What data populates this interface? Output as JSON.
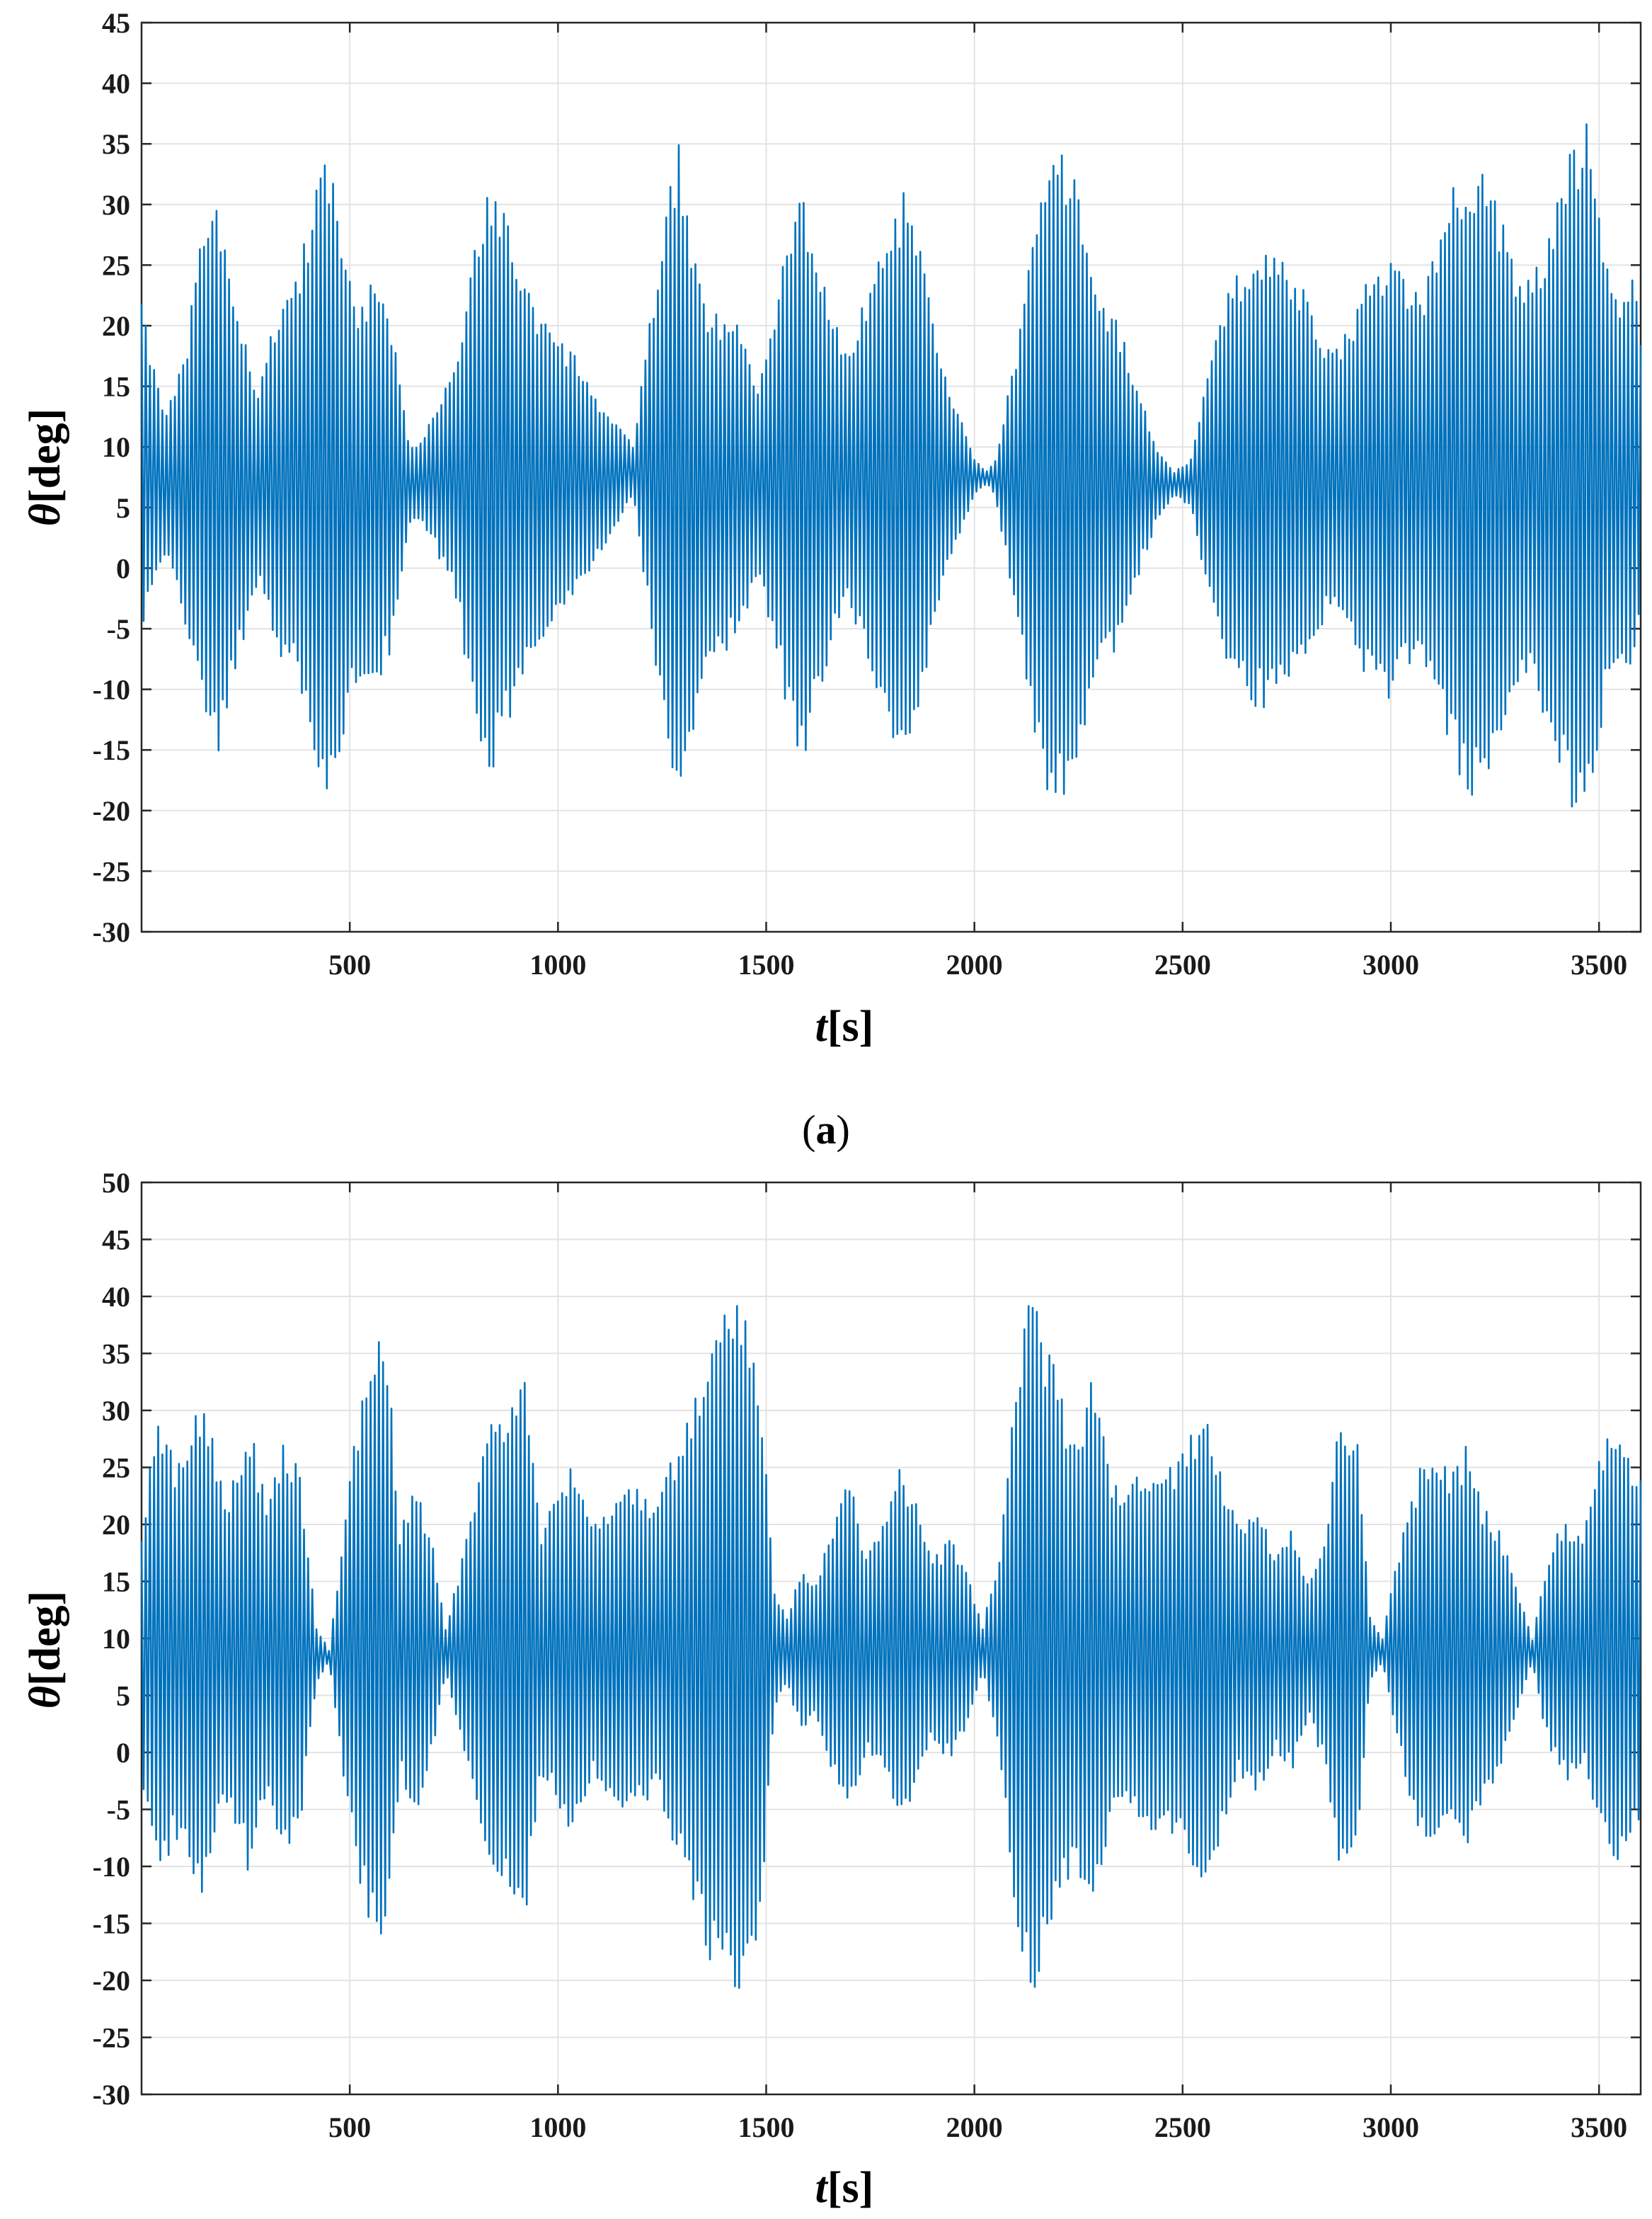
{
  "figure": {
    "caption_a": {
      "open": "(",
      "letter": "a",
      "close": ")"
    }
  },
  "chart_data": [
    {
      "type": "line",
      "panel": "a",
      "xlabel": {
        "var": "t",
        "unit": "[s]"
      },
      "ylabel": {
        "var": "θ",
        "unit": "[deg]"
      },
      "xlim": [
        0,
        3600
      ],
      "ylim": [
        -30,
        45
      ],
      "xticks": [
        500,
        1000,
        1500,
        2000,
        2500,
        3000,
        3500
      ],
      "yticks": [
        -30,
        -25,
        -20,
        -15,
        -10,
        -5,
        0,
        5,
        10,
        15,
        20,
        25,
        30,
        35,
        40,
        45
      ],
      "grid": true,
      "line_color": "#0072BD",
      "oscillation_period_s": 10,
      "series": [
        {
          "envelope": {
            "t": [
              0,
              20,
              60,
              100,
              150,
              180,
              230,
              280,
              330,
              380,
              430,
              440,
              480,
              520,
              560,
              600,
              640,
              660,
              700,
              760,
              800,
              840,
              870,
              920,
              960,
              1000,
              1060,
              1100,
              1150,
              1180,
              1200,
              1250,
              1270,
              1290,
              1320,
              1360,
              1400,
              1440,
              1480,
              1520,
              1560,
              1590,
              1610,
              1660,
              1700,
              1760,
              1800,
              1830,
              1880,
              1920,
              1960,
              2000,
              2030,
              2050,
              2090,
              2130,
              2170,
              2200,
              2250,
              2280,
              2300,
              2350,
              2400,
              2440,
              2480,
              2520,
              2560,
              2600,
              2620,
              2660,
              2700,
              2750,
              2790,
              2830,
              2860,
              2900,
              2940,
              2990,
              3030,
              3070,
              3110,
              3150,
              3190,
              3230,
              3260,
              3300,
              3340,
              3390,
              3430,
              3470,
              3490,
              3510,
              3550,
              3580,
              3600
            ],
            "upper": [
              24,
              18,
              13,
              17,
              29,
              31,
              21,
              15,
              22,
              25,
              34,
              36,
              28,
              22,
              24,
              20,
              11,
              10,
              13,
              18,
              28,
              32,
              30,
              24,
              21,
              19,
              17,
              13,
              12,
              10,
              15,
              28,
              34,
              35,
              28,
              22,
              21,
              20,
              15,
              21,
              29,
              31,
              28,
              21,
              18,
              25,
              29,
              31,
              25,
              17,
              13,
              9,
              8,
              9,
              16,
              25,
              33,
              35,
              32,
              26,
              23,
              20,
              14,
              10,
              8,
              9,
              16,
              22,
              24,
              26,
              27,
              25,
              23,
              20,
              18,
              20,
              24,
              26,
              24,
              23,
              26,
              32,
              34,
              33,
              30,
              25,
              24,
              29,
              35,
              37,
              31,
              27,
              22,
              25,
              20
            ],
            "lower": [
              -6,
              -2,
              1,
              -4,
              -13,
              -16,
              -8,
              -1,
              -7,
              -10,
              -19,
              -21,
              -15,
              -9,
              -10,
              -7,
              3,
              4,
              2,
              -3,
              -14,
              -17,
              -14,
              -9,
              -6,
              -4,
              -2,
              1,
              4,
              6,
              1,
              -13,
              -19,
              -20,
              -15,
              -9,
              -7,
              -5,
              -1,
              -6,
              -14,
              -16,
              -13,
              -6,
              -3,
              -10,
              -15,
              -16,
              -10,
              -2,
              2,
              6,
              7,
              6,
              -2,
              -11,
              -18,
              -20,
              -17,
              -12,
              -9,
              -6,
              0,
              4,
              6,
              5,
              -2,
              -7,
              -9,
              -11,
              -12,
              -10,
              -8,
              -5,
              -3,
              -5,
              -9,
              -11,
              -9,
              -8,
              -12,
              -16,
              -19,
              -18,
              -15,
              -10,
              -9,
              -15,
              -20,
              -21,
              -17,
              -12,
              -7,
              -9,
              -5
            ]
          }
        }
      ]
    },
    {
      "type": "line",
      "panel": "b",
      "xlabel": {
        "var": "t",
        "unit": "[s]"
      },
      "ylabel": {
        "var": "θ",
        "unit": "[deg]"
      },
      "xlim": [
        0,
        3600
      ],
      "ylim": [
        -30,
        50
      ],
      "xticks": [
        500,
        1000,
        1500,
        2000,
        2500,
        3000,
        3500
      ],
      "yticks": [
        -30,
        -25,
        -20,
        -15,
        -10,
        -5,
        0,
        5,
        10,
        15,
        20,
        25,
        30,
        35,
        40,
        45,
        50
      ],
      "grid": true,
      "line_color": "#0072BD",
      "oscillation_period_s": 10,
      "series": [
        {
          "envelope": {
            "t": [
              0,
              40,
              80,
              120,
              150,
              200,
              260,
              300,
              340,
              380,
              420,
              450,
              480,
              520,
              560,
              590,
              620,
              660,
              700,
              730,
              770,
              820,
              880,
              920,
              960,
              1000,
              1040,
              1080,
              1120,
              1160,
              1200,
              1240,
              1280,
              1320,
              1360,
              1400,
              1440,
              1470,
              1490,
              1520,
              1550,
              1580,
              1620,
              1660,
              1700,
              1740,
              1780,
              1820,
              1860,
              1900,
              1940,
              1980,
              2020,
              2060,
              2100,
              2130,
              2160,
              2200,
              2240,
              2280,
              2320,
              2360,
              2400,
              2440,
              2480,
              2520,
              2560,
              2600,
              2640,
              2680,
              2720,
              2760,
              2800,
              2840,
              2880,
              2920,
              2950,
              2980,
              3020,
              3060,
              3100,
              3140,
              3180,
              3220,
              3260,
              3300,
              3340,
              3380,
              3420,
              3460,
              3500,
              3540,
              3580,
              3600
            ],
            "upper": [
              20,
              31,
              26,
              30,
              32,
              22,
              29,
              22,
              27,
              25,
              11,
              9,
              18,
              30,
              36,
              37,
              20,
              24,
              18,
              11,
              17,
              28,
              31,
              33,
              20,
              23,
              26,
              20,
              22,
              24,
              23,
              22,
              27,
              31,
              36,
              39,
              40,
              38,
              31,
              14,
              12,
              16,
              15,
              20,
              24,
              18,
              20,
              25,
              22,
              17,
              19,
              16,
              11,
              18,
              34,
              41,
              38,
              33,
              27,
              33,
              26,
              22,
              25,
              26,
              25,
              28,
              30,
              24,
              20,
              22,
              18,
              20,
              15,
              19,
              30,
              27,
              12,
              10,
              18,
              24,
              28,
              25,
              27,
              22,
              20,
              15,
              10,
              18,
              21,
              19,
              26,
              29,
              25,
              26
            ],
            "lower": [
              -2,
              -12,
              -8,
              -11,
              -14,
              -4,
              -11,
              -4,
              -9,
              -7,
              6,
              8,
              -1,
              -12,
              -17,
              -18,
              -2,
              -6,
              0,
              7,
              1,
              -10,
              -13,
              -15,
              -2,
              -5,
              -8,
              -2,
              -4,
              -6,
              -5,
              -4,
              -9,
              -13,
              -18,
              -20,
              -21,
              -19,
              -13,
              4,
              6,
              2,
              3,
              -2,
              -6,
              0,
              -2,
              -7,
              -4,
              1,
              -1,
              2,
              7,
              0,
              -16,
              -22,
              -20,
              -15,
              -9,
              -15,
              -8,
              -4,
              -7,
              -8,
              -7,
              -10,
              -12,
              -6,
              -2,
              -4,
              0,
              -2,
              3,
              -1,
              -12,
              -9,
              6,
              8,
              0,
              -6,
              -10,
              -7,
              -9,
              -4,
              -2,
              3,
              8,
              0,
              -3,
              -1,
              -8,
              -11,
              -7,
              -8
            ]
          }
        }
      ]
    }
  ]
}
